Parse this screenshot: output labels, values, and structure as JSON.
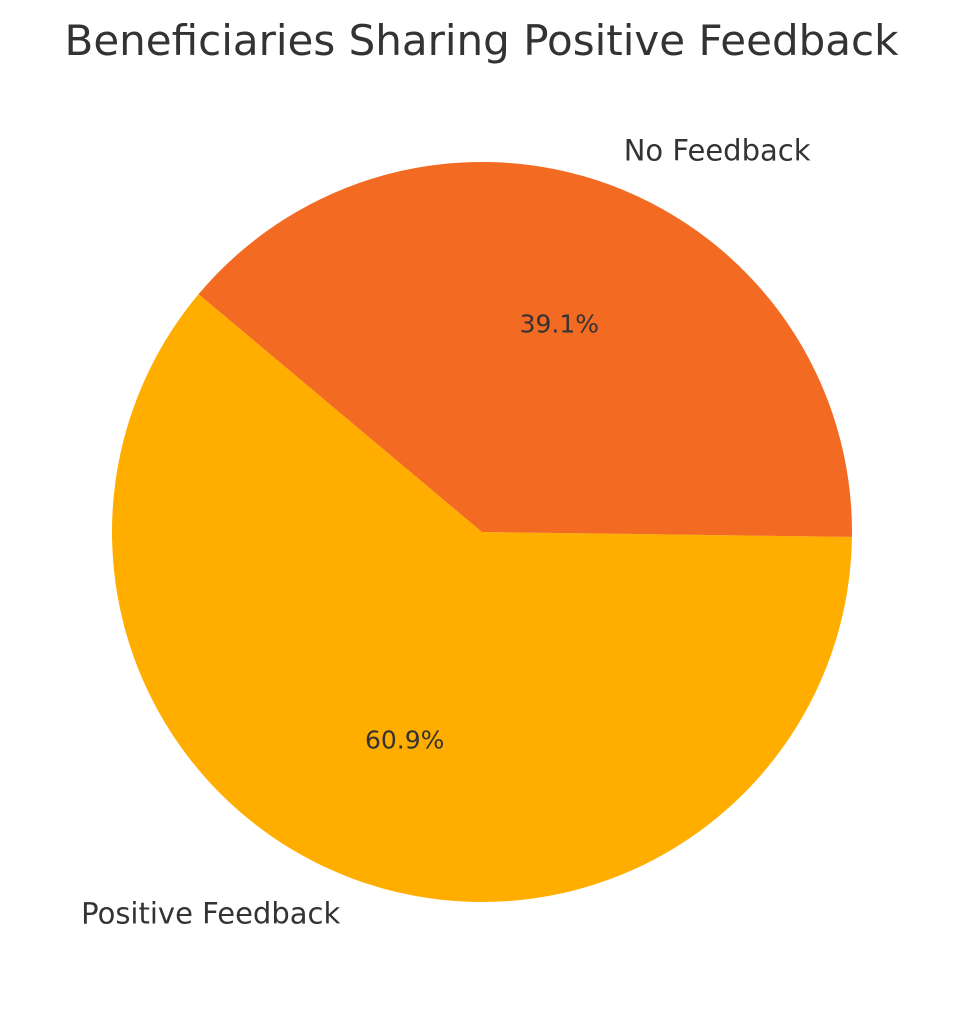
{
  "chart_data": {
    "type": "pie",
    "title": "Beneficiaries Sharing Positive Feedback",
    "labels": [
      "Positive Feedback",
      "No Feedback"
    ],
    "values": [
      60.9,
      39.1
    ],
    "percent_labels": [
      "60.9%",
      "39.1%"
    ],
    "colors": [
      "#FFAE00",
      "#F36A22"
    ],
    "start_angle_deg": 140,
    "legend": "none"
  }
}
